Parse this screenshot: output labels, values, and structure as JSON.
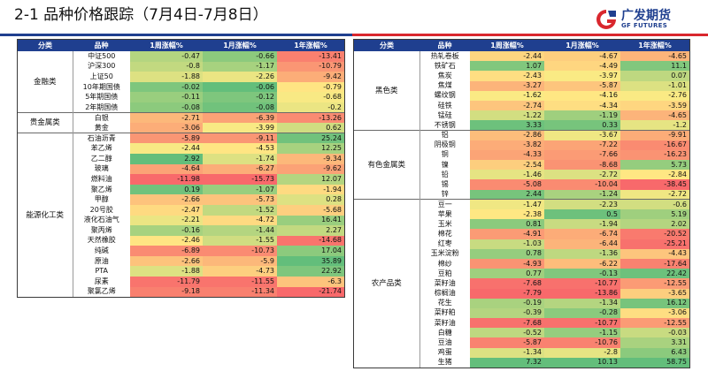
{
  "header": {
    "title": "2-1  品种价格跟踪（7月4日-7月8日）"
  },
  "logo": {
    "name_cn": "广发期货",
    "name_en": "GF FUTURES"
  },
  "columns": [
    "分类",
    "品种",
    "1周涨幅%",
    "1月涨幅%",
    "1年涨幅%"
  ],
  "colors": {
    "header_bg": "#1f3f8f",
    "negative": "#f8696b",
    "neutral": "#ffeb84",
    "positive": "#63be7b"
  },
  "left_table": {
    "groups": [
      {
        "category": "金融类",
        "rows": [
          {
            "name": "中证500",
            "w": "-0.47",
            "m": "-0.66",
            "y": "-13.41"
          },
          {
            "name": "沪深300",
            "w": "-0.8",
            "m": "-1.17",
            "y": "-10.79"
          },
          {
            "name": "上证50",
            "w": "-1.88",
            "m": "-2.26",
            "y": "-9.42"
          },
          {
            "name": "10年期国债",
            "w": "-0.02",
            "m": "-0.06",
            "y": "-0.79"
          },
          {
            "name": "5年期国债",
            "w": "-0.11",
            "m": "-0.12",
            "y": "-0.68"
          },
          {
            "name": "2年期国债",
            "w": "-0.08",
            "m": "-0.08",
            "y": "-0.2"
          }
        ]
      },
      {
        "category": "贵金属类",
        "rows": [
          {
            "name": "白银",
            "w": "-2.71",
            "m": "-6.39",
            "y": "-13.26"
          },
          {
            "name": "黄金",
            "w": "-3.06",
            "m": "-3.99",
            "y": "0.62"
          }
        ]
      },
      {
        "category": "能源化工类",
        "rows": [
          {
            "name": "石油沥青",
            "w": "-5.89",
            "m": "-9.11",
            "y": "25.24"
          },
          {
            "name": "苯乙烯",
            "w": "-2.44",
            "m": "-4.53",
            "y": "12.25"
          },
          {
            "name": "乙二醇",
            "w": "2.92",
            "m": "-1.74",
            "y": "-9.34"
          },
          {
            "name": "玻璃",
            "w": "-4.64",
            "m": "-6.27",
            "y": "-9.62"
          },
          {
            "name": "燃料油",
            "w": "-11.98",
            "m": "-15.73",
            "y": "12.07"
          },
          {
            "name": "聚乙烯",
            "w": "0.19",
            "m": "-1.07",
            "y": "-1.94"
          },
          {
            "name": "甲醇",
            "w": "-2.66",
            "m": "-5.73",
            "y": "0.28"
          },
          {
            "name": "20号胶",
            "w": "-2.47",
            "m": "-1.52",
            "y": "-5.68"
          },
          {
            "name": "液化石油气",
            "w": "-2.21",
            "m": "-4.72",
            "y": "16.41"
          },
          {
            "name": "聚丙烯",
            "w": "-0.16",
            "m": "-1.44",
            "y": "2.27"
          },
          {
            "name": "天然橡胶",
            "w": "-2.46",
            "m": "-1.55",
            "y": "-14.68"
          },
          {
            "name": "纯碱",
            "w": "-6.89",
            "m": "-10.73",
            "y": "17.04"
          },
          {
            "name": "原油",
            "w": "-2.66",
            "m": "-5.9",
            "y": "35.89"
          },
          {
            "name": "PTA",
            "w": "-1.88",
            "m": "-4.73",
            "y": "22.92"
          },
          {
            "name": "尿素",
            "w": "-11.79",
            "m": "-11.55",
            "y": "-6.3"
          },
          {
            "name": "聚氯乙烯",
            "w": "-9.18",
            "m": "-11.34",
            "y": "-21.74"
          }
        ]
      }
    ]
  },
  "right_table": {
    "groups": [
      {
        "category": "黑色类",
        "rows": [
          {
            "name": "热轧卷板",
            "w": "-2.44",
            "m": "-4.67",
            "y": "-4.65"
          },
          {
            "name": "铁矿石",
            "w": "1.07",
            "m": "-4.49",
            "y": "11.1"
          },
          {
            "name": "焦炭",
            "w": "-2.43",
            "m": "-3.97",
            "y": "0.07"
          },
          {
            "name": "焦煤",
            "w": "-3.27",
            "m": "-5.87",
            "y": "-1.01"
          },
          {
            "name": "螺纹钢",
            "w": "-1.62",
            "m": "-4.16",
            "y": "-2.76"
          },
          {
            "name": "硅铁",
            "w": "-2.74",
            "m": "-4.34",
            "y": "-3.59"
          },
          {
            "name": "锰硅",
            "w": "-1.22",
            "m": "-1.19",
            "y": "-4.65"
          },
          {
            "name": "不锈钢",
            "w": "3.33",
            "m": "0.33",
            "y": "-1.2"
          }
        ]
      },
      {
        "category": "有色金属类",
        "rows": [
          {
            "name": "铝",
            "w": "-2.86",
            "m": "-3.67",
            "y": "-9.91"
          },
          {
            "name": "阴极铜",
            "w": "-3.82",
            "m": "-7.22",
            "y": "-16.67"
          },
          {
            "name": "铜",
            "w": "-4.33",
            "m": "-7.66",
            "y": "-16.23"
          },
          {
            "name": "镍",
            "w": "-2.54",
            "m": "-8.68",
            "y": "5.73"
          },
          {
            "name": "铅",
            "w": "-1.46",
            "m": "-2.72",
            "y": "-2.84"
          },
          {
            "name": "锡",
            "w": "-5.08",
            "m": "-10.04",
            "y": "-38.45"
          },
          {
            "name": "锌",
            "w": "2.44",
            "m": "-1.24",
            "y": "-2.72"
          }
        ]
      },
      {
        "category": "农产品类",
        "rows": [
          {
            "name": "豆一",
            "w": "-1.47",
            "m": "-2.23",
            "y": "-0.6"
          },
          {
            "name": "苹果",
            "w": "-2.38",
            "m": "0.5",
            "y": "5.19"
          },
          {
            "name": "玉米",
            "w": "0.81",
            "m": "-1.94",
            "y": "2.02"
          },
          {
            "name": "棉花",
            "w": "-4.91",
            "m": "-6.74",
            "y": "-20.52"
          },
          {
            "name": "红枣",
            "w": "-1.03",
            "m": "-6.44",
            "y": "-25.21"
          },
          {
            "name": "玉米淀粉",
            "w": "0.78",
            "m": "-1.36",
            "y": "-4.43"
          },
          {
            "name": "棉纱",
            "w": "-4.93",
            "m": "-6.22",
            "y": "-17.64"
          },
          {
            "name": "豆粕",
            "w": "0.77",
            "m": "-0.13",
            "y": "22.42"
          },
          {
            "name": "菜籽油",
            "w": "-7.68",
            "m": "-10.77",
            "y": "-12.55"
          },
          {
            "name": "棕榈油",
            "w": "-7.79",
            "m": "-13.86",
            "y": "-3.65"
          },
          {
            "name": "花生",
            "w": "-0.19",
            "m": "-1.34",
            "y": "16.12"
          },
          {
            "name": "菜籽粕",
            "w": "-0.39",
            "m": "-0.28",
            "y": "-3.06"
          },
          {
            "name": "菜籽油",
            "w": "-7.68",
            "m": "-10.77",
            "y": "-12.55"
          },
          {
            "name": "白糖",
            "w": "-0.52",
            "m": "-1.15",
            "y": "-0.03"
          },
          {
            "name": "豆油",
            "w": "-5.87",
            "m": "-10.76",
            "y": "3.31"
          },
          {
            "name": "鸡蛋",
            "w": "-1.34",
            "m": "-2.8",
            "y": "6.43"
          },
          {
            "name": "生猪",
            "w": "7.32",
            "m": "10.13",
            "y": "58.75"
          }
        ]
      }
    ]
  }
}
